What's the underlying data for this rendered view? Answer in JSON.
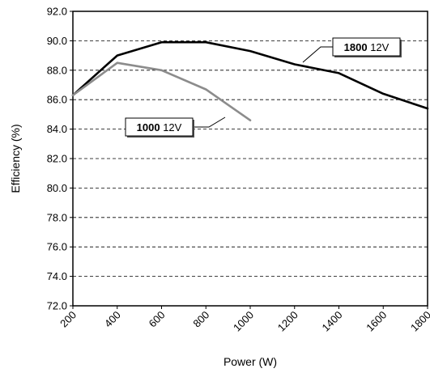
{
  "chart_data": {
    "type": "line",
    "title": "",
    "xlabel": "Power (W)",
    "ylabel": "Efficiency (%)",
    "xlim": [
      200,
      1800
    ],
    "ylim": [
      72.0,
      92.0
    ],
    "x_ticks": [
      "200",
      "400",
      "600",
      "800",
      "1000",
      "1200",
      "1400",
      "1600",
      "1800"
    ],
    "y_ticks": [
      "72.0",
      "74.0",
      "76.0",
      "78.0",
      "80.0",
      "82.0",
      "84.0",
      "86.0",
      "88.0",
      "90.0",
      "92.0"
    ],
    "grid": "horizontal dashed",
    "series": [
      {
        "name": "1800 12V",
        "color": "#000000",
        "x": [
          200,
          400,
          600,
          800,
          1000,
          1200,
          1400,
          1600,
          1800
        ],
        "y": [
          86.3,
          89.0,
          89.9,
          89.9,
          89.3,
          88.4,
          87.8,
          86.4,
          85.4
        ]
      },
      {
        "name": "1000 12V",
        "color": "#8c8c8c",
        "x": [
          200,
          400,
          600,
          800,
          1000
        ],
        "y": [
          86.3,
          88.5,
          88.0,
          86.7,
          84.6
        ]
      }
    ],
    "callouts": [
      {
        "label_bold": "1800",
        "label_rest": " 12V",
        "series": "1800 12V"
      },
      {
        "label_bold": "1000",
        "label_rest": " 12V",
        "series": "1000 12V"
      }
    ]
  }
}
